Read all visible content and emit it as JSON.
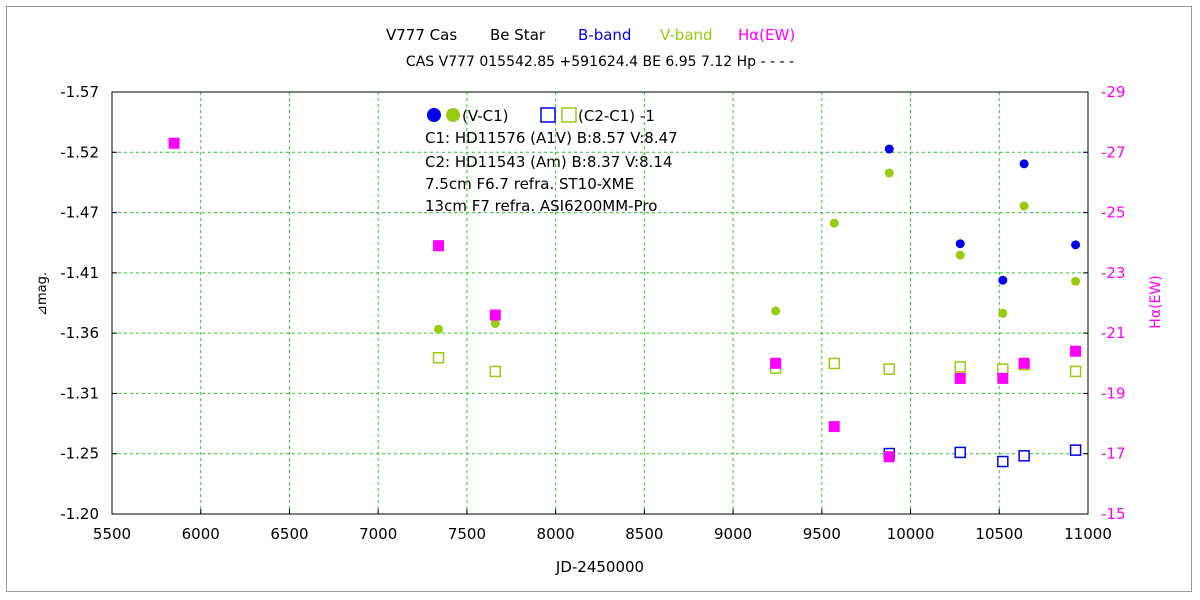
{
  "chart_data": {
    "type": "scatter",
    "title": {
      "object": "V777 Cas",
      "kind": "Be Star",
      "b_label": "B-band",
      "v_label": "V-band",
      "h_label": "Hα(EW)"
    },
    "subtitle": "CAS V777  015542.85  +591624.4  BE  6.95  7.12  Hp - - - -",
    "xlabel": "JD-2450000",
    "ylabel": "⊿mag.",
    "y2label": "Hα(EW)",
    "xlim": [
      5500,
      11000
    ],
    "ylim": [
      -1.57,
      -1.2
    ],
    "y2lim": [
      -29,
      -15
    ],
    "x_ticks": [
      5500,
      6000,
      6500,
      7000,
      7500,
      8000,
      8500,
      9000,
      9500,
      10000,
      10500,
      11000
    ],
    "y_ticks": [
      "-1.57",
      "-1.52",
      "-1.47",
      "-1.41",
      "-1.36",
      "-1.31",
      "-1.25",
      "-1.20"
    ],
    "y2_ticks": [
      "-29",
      "-27",
      "-25",
      "-23",
      "-21",
      "-19",
      "-17",
      "-15"
    ],
    "legend": {
      "line1_a": "(V-C1)",
      "line1_b": "(C2-C1) -1",
      "c1": "C1: HD11576 (A1V)  B:8.57  V:8.47",
      "c2": "C2: HD11543 (Am)  B:8.37  V:8.14",
      "scope1": "7.5cm  F6.7  refra.  ST10-XME",
      "scope2": "13cm  F7  refra.  ASI6200MM-Pro"
    },
    "colors": {
      "B": "#0000ee",
      "V": "#99cc11",
      "H": "#ff00ff",
      "grid": "#22cc22",
      "axis": "#000000"
    },
    "series": [
      {
        "name": "B (V-C1)",
        "marker": "filled-circle",
        "axis": "left",
        "color": "#0000ee",
        "points": [
          [
            9880,
            -1.52
          ],
          [
            10280,
            -1.437
          ],
          [
            10520,
            -1.405
          ],
          [
            10640,
            -1.507
          ],
          [
            10930,
            -1.436
          ]
        ]
      },
      {
        "name": "V (V-C1)",
        "marker": "filled-circle",
        "axis": "left",
        "color": "#99cc11",
        "points": [
          [
            7340,
            -1.362
          ],
          [
            7660,
            -1.367
          ],
          [
            9240,
            -1.378
          ],
          [
            9570,
            -1.455
          ],
          [
            9880,
            -1.499
          ],
          [
            10280,
            -1.427
          ],
          [
            10520,
            -1.376
          ],
          [
            10640,
            -1.47
          ],
          [
            10930,
            -1.404
          ]
        ]
      },
      {
        "name": "B (C2-C1)-1",
        "marker": "open-square",
        "axis": "left",
        "color": "#0000ee",
        "points": [
          [
            9880,
            -1.253
          ],
          [
            10280,
            -1.254
          ],
          [
            10520,
            -1.246
          ],
          [
            10640,
            -1.251
          ],
          [
            10930,
            -1.256
          ]
        ]
      },
      {
        "name": "V (C2-C1)-1",
        "marker": "open-square",
        "axis": "left",
        "color": "#99cc11",
        "points": [
          [
            7340,
            -1.337
          ],
          [
            7660,
            -1.325
          ],
          [
            9240,
            -1.328
          ],
          [
            9570,
            -1.332
          ],
          [
            9880,
            -1.327
          ],
          [
            10280,
            -1.329
          ],
          [
            10520,
            -1.327
          ],
          [
            10640,
            -1.331
          ],
          [
            10930,
            -1.325
          ]
        ]
      },
      {
        "name": "Hα(EW)",
        "marker": "filled-square",
        "axis": "right",
        "color": "#ff00ff",
        "points": [
          [
            5850,
            -27.3
          ],
          [
            7340,
            -23.9
          ],
          [
            7660,
            -21.6
          ],
          [
            9240,
            -20.0
          ],
          [
            9570,
            -17.9
          ],
          [
            9880,
            -16.9
          ],
          [
            10280,
            -19.5
          ],
          [
            10520,
            -19.5
          ],
          [
            10640,
            -20.0
          ],
          [
            10930,
            -20.4
          ]
        ]
      }
    ]
  }
}
